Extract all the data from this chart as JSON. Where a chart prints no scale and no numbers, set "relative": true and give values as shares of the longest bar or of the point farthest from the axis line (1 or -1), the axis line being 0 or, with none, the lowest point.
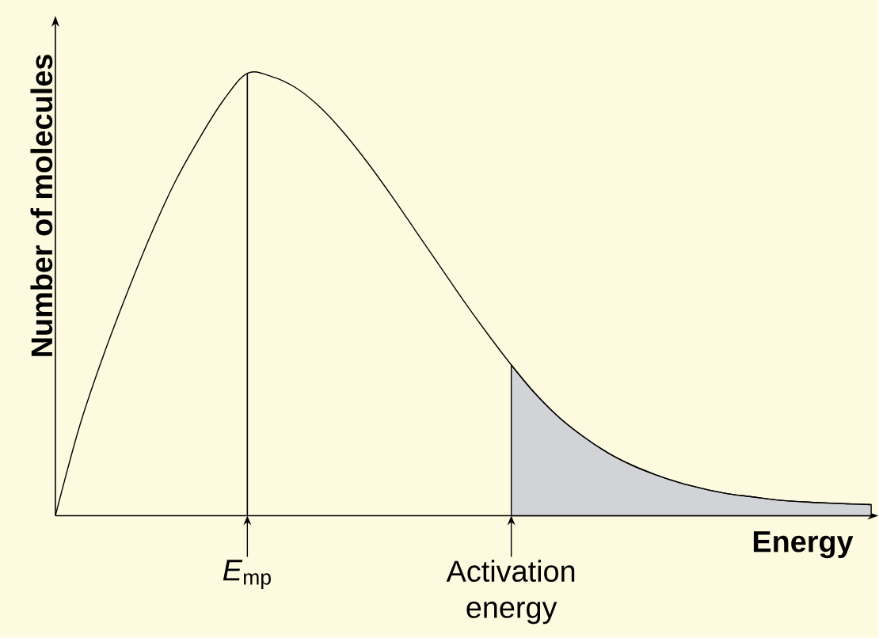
{
  "chart_data": {
    "type": "line",
    "relative": true,
    "xlabel": "Energy",
    "ylabel": "Number of molecules",
    "categories": [
      null,
      null,
      null,
      null,
      null,
      null,
      null,
      null,
      "*E*$_{mp}$",
      null,
      null,
      null,
      null,
      null,
      null,
      null,
      null,
      null,
      null,
      "Activation energy",
      null,
      null,
      null,
      null,
      null,
      null,
      null,
      null,
      null,
      null,
      null,
      null,
      null,
      null,
      null
    ],
    "series": [
      {
        "type": "area",
        "color": "#d2d3d7",
        "values": [
          null,
          null,
          null,
          null,
          null,
          null,
          null,
          null,
          null,
          null,
          null,
          null,
          null,
          null,
          null,
          null,
          null,
          null,
          null,
          0.341,
          0.276,
          0.222,
          0.179,
          0.143,
          0.115,
          0.093,
          0.075,
          0.061,
          0.05,
          0.043,
          0.036,
          0.032,
          0.029,
          0.027,
          0.025
        ]
      },
      {
        "color": "#000000",
        "values": [
          0,
          0.201,
          0.362,
          0.505,
          0.638,
          0.756,
          0.853,
          0.939,
          1.0,
          0.993,
          0.968,
          0.925,
          0.867,
          0.799,
          0.724,
          0.645,
          0.566,
          0.487,
          0.412,
          0.341,
          0.276,
          0.222,
          0.179,
          0.143,
          0.115,
          0.093,
          0.075,
          0.061,
          0.05,
          0.043,
          0.036,
          0.032,
          0.029,
          0.027,
          0.025
        ]
      },
      {
        "type": "bar",
        "color": "#000000",
        "values": [
          null,
          null,
          null,
          null,
          null,
          null,
          null,
          null,
          1.0,
          null,
          null,
          null,
          null,
          null,
          null,
          null,
          null,
          null,
          null,
          null,
          null,
          null,
          null,
          null,
          null,
          null,
          null,
          null,
          null,
          null,
          null,
          null,
          null,
          null,
          null
        ]
      }
    ]
  }
}
